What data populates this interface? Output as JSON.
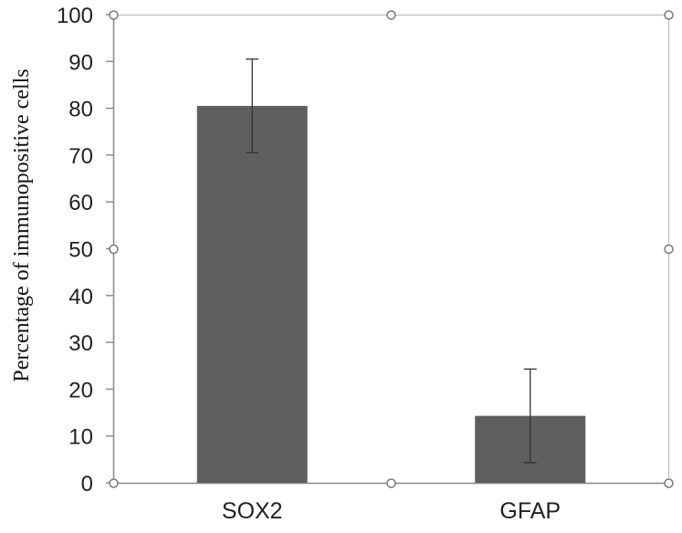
{
  "chart_data": {
    "type": "bar",
    "categories": [
      "SOX2",
      "GFAP"
    ],
    "values": [
      80.5,
      14.3
    ],
    "errors": [
      10.0,
      10.0
    ],
    "ylabel": "Percentage of immunopositive cells",
    "xlabel": "",
    "ylim": [
      0,
      100
    ],
    "yticks": [
      "0",
      "10",
      "20",
      "30",
      "40",
      "50",
      "60",
      "70",
      "80",
      "90",
      "100"
    ],
    "grid": false,
    "legend": "none",
    "bar_color": "#5f5f5f",
    "error_bar_color": "#333333"
  }
}
